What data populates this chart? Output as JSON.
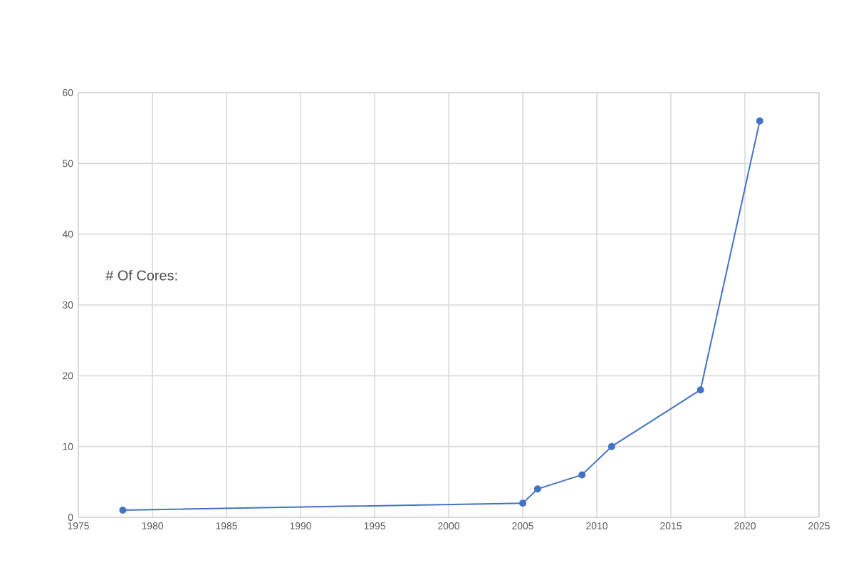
{
  "chart_data": {
    "type": "line",
    "x": [
      1978,
      2005,
      2006,
      2009,
      2011,
      2017,
      2021
    ],
    "series": [
      {
        "color": "#4472c4",
        "values": [
          1,
          2,
          4,
          6,
          10,
          18,
          56
        ]
      }
    ],
    "xlim": [
      1975,
      2025
    ],
    "xticks": [
      1975,
      1980,
      1985,
      1990,
      1995,
      2000,
      2005,
      2010,
      2015,
      2020,
      2025
    ],
    "ylim": [
      0,
      60
    ],
    "yticks": [
      0,
      10,
      20,
      30,
      40,
      50,
      60
    ],
    "grid": true,
    "marker": "circle",
    "line_style": "solid",
    "annotations": [
      "# Of Cores:"
    ]
  }
}
